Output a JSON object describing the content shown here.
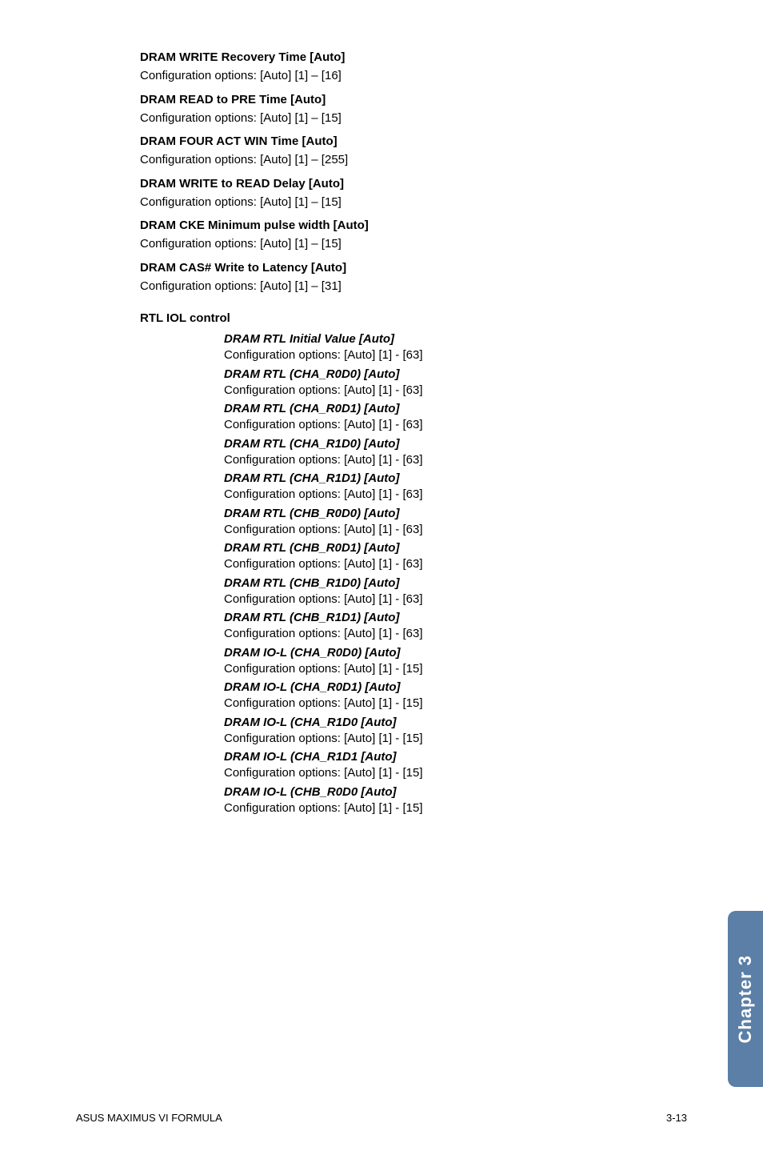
{
  "top_entries": [
    {
      "title": "DRAM WRITE Recovery Time [Auto]",
      "desc": "Configuration options: [Auto] [1] – [16]"
    },
    {
      "title": "DRAM READ to PRE Time [Auto]",
      "desc": "Configuration options: [Auto] [1] – [15]"
    },
    {
      "title": "DRAM FOUR ACT WIN Time [Auto]",
      "desc": "Configuration options: [Auto] [1] – [255]"
    },
    {
      "title": "DRAM WRITE to READ Delay [Auto]",
      "desc": "Configuration options: [Auto] [1] – [15]"
    },
    {
      "title": "DRAM CKE Minimum pulse width [Auto]",
      "desc": "Configuration options: [Auto] [1] – [15]"
    },
    {
      "title": "DRAM CAS# Write to Latency [Auto]",
      "desc": "Configuration options: [Auto] [1] – [31]"
    }
  ],
  "section": {
    "heading": "RTL IOL control",
    "items": [
      {
        "title": "DRAM RTL Initial Value [Auto]",
        "desc": "Configuration options: [Auto] [1] - [63]"
      },
      {
        "title": "DRAM RTL (CHA_R0D0) [Auto]",
        "desc": "Configuration options: [Auto] [1] - [63]"
      },
      {
        "title": "DRAM RTL (CHA_R0D1) [Auto]",
        "desc": "Configuration options: [Auto] [1] - [63]"
      },
      {
        "title": "DRAM RTL (CHA_R1D0) [Auto]",
        "desc": "Configuration options: [Auto] [1] - [63]"
      },
      {
        "title": "DRAM RTL (CHA_R1D1) [Auto]",
        "desc": "Configuration options: [Auto] [1] - [63]"
      },
      {
        "title": "DRAM RTL (CHB_R0D0) [Auto]",
        "desc": "Configuration options: [Auto] [1] - [63]"
      },
      {
        "title": "DRAM RTL (CHB_R0D1) [Auto]",
        "desc": "Configuration options: [Auto] [1] - [63]"
      },
      {
        "title": "DRAM RTL (CHB_R1D0) [Auto]",
        "desc": "Configuration options: [Auto] [1] - [63]"
      },
      {
        "title": "DRAM RTL (CHB_R1D1) [Auto]",
        "desc": "Configuration options: [Auto] [1] - [63]"
      },
      {
        "title": "DRAM IO-L (CHA_R0D0) [Auto]",
        "desc": "Configuration options: [Auto] [1] - [15]"
      },
      {
        "title": "DRAM IO-L (CHA_R0D1) [Auto]",
        "desc": "Configuration options: [Auto] [1] - [15]"
      },
      {
        "title": "DRAM IO-L (CHA_R1D0 [Auto]",
        "desc": "Configuration options: [Auto] [1] - [15]"
      },
      {
        "title": "DRAM IO-L (CHA_R1D1 [Auto]",
        "desc": "Configuration options: [Auto] [1] - [15]"
      },
      {
        "title": "DRAM IO-L (CHB_R0D0 [Auto]",
        "desc": "Configuration options: [Auto] [1] - [15]"
      }
    ]
  },
  "side_tab": "Chapter 3",
  "footer_left": "ASUS MAXIMUS VI FORMULA",
  "footer_right": "3-13"
}
